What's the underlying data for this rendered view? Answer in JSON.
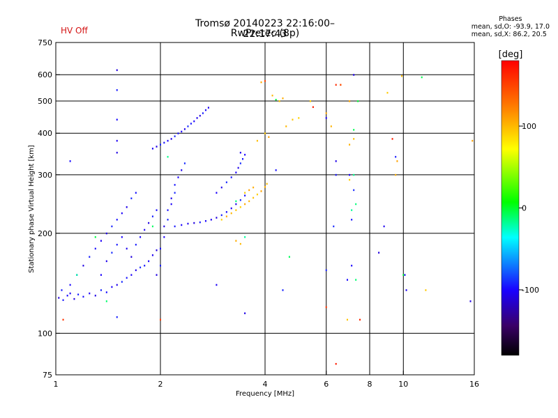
{
  "status": {
    "hv": "HV Off"
  },
  "title": {
    "line1": "Tromsø 20140223 22:16:00–22:17:43",
    "line2": "RwPretec (8p)"
  },
  "stats": {
    "header": "Phases",
    "line1": "mean, sd,O: -93.9, 17.0",
    "line2": "mean, sd,X:  86.2, 20.5"
  },
  "colorbar": {
    "label": "[deg]",
    "ticks": [
      {
        "label": "100",
        "value": 100
      },
      {
        "label": "0",
        "value": 0
      },
      {
        "label": "-100",
        "value": -100
      }
    ],
    "range": [
      -180,
      180
    ]
  },
  "chart_data": {
    "type": "scatter",
    "title": "Tromsø 20140223 22:16:00–22:17:43",
    "subtitle": "RwPretec (8p)",
    "xlabel": "Frequency [MHz]",
    "ylabel": "Stationary phase Virtual Height [km]",
    "xscale": "log",
    "yscale": "log",
    "xlim": [
      1,
      16
    ],
    "ylim": [
      75,
      750
    ],
    "xticks": [
      1,
      2,
      4,
      6,
      8,
      10,
      16
    ],
    "yticks": [
      75,
      100,
      200,
      300,
      400,
      500,
      600,
      750
    ],
    "grid_x": [
      2,
      4,
      6,
      8,
      10
    ],
    "grid_y": [
      100,
      200,
      300,
      400,
      500,
      600
    ],
    "color_variable": "phase [deg]",
    "series": [
      {
        "phase": -100,
        "points": [
          [
            1.02,
            128
          ],
          [
            1.05,
            126
          ],
          [
            1.08,
            130
          ],
          [
            1.1,
            132
          ],
          [
            1.13,
            127
          ],
          [
            1.16,
            131
          ],
          [
            1.2,
            129
          ],
          [
            1.25,
            132
          ],
          [
            1.3,
            130
          ],
          [
            1.35,
            135
          ],
          [
            1.4,
            133
          ],
          [
            1.45,
            138
          ],
          [
            1.5,
            140
          ],
          [
            1.55,
            143
          ],
          [
            1.6,
            147
          ],
          [
            1.65,
            150
          ],
          [
            1.7,
            155
          ],
          [
            1.75,
            158
          ],
          [
            1.8,
            160
          ],
          [
            1.85,
            165
          ],
          [
            1.9,
            172
          ],
          [
            1.95,
            178
          ],
          [
            1.04,
            135
          ],
          [
            1.1,
            140
          ],
          [
            1.15,
            150
          ],
          [
            1.2,
            160
          ],
          [
            1.25,
            170
          ],
          [
            1.3,
            180
          ],
          [
            1.35,
            190
          ],
          [
            1.4,
            200
          ],
          [
            1.45,
            210
          ],
          [
            1.5,
            220
          ],
          [
            1.55,
            230
          ],
          [
            1.6,
            240
          ],
          [
            1.65,
            255
          ],
          [
            1.7,
            265
          ],
          [
            1.35,
            150
          ],
          [
            1.4,
            165
          ],
          [
            1.45,
            175
          ],
          [
            1.5,
            185
          ],
          [
            1.55,
            195
          ],
          [
            1.6,
            180
          ],
          [
            1.65,
            170
          ],
          [
            1.7,
            185
          ],
          [
            1.75,
            195
          ],
          [
            1.8,
            205
          ],
          [
            1.85,
            215
          ],
          [
            1.9,
            225
          ],
          [
            1.95,
            235
          ],
          [
            1.9,
            360
          ],
          [
            1.95,
            365
          ],
          [
            2.0,
            370
          ],
          [
            2.05,
            375
          ],
          [
            2.1,
            380
          ],
          [
            2.15,
            385
          ],
          [
            2.2,
            392
          ],
          [
            2.25,
            400
          ],
          [
            2.3,
            405
          ],
          [
            2.35,
            412
          ],
          [
            2.4,
            420
          ],
          [
            2.45,
            428
          ],
          [
            2.5,
            435
          ],
          [
            2.55,
            445
          ],
          [
            2.6,
            452
          ],
          [
            2.65,
            460
          ],
          [
            2.7,
            470
          ],
          [
            2.75,
            478
          ],
          [
            1.95,
            150
          ],
          [
            2.0,
            160
          ],
          [
            2.0,
            180
          ],
          [
            2.05,
            195
          ],
          [
            2.05,
            210
          ],
          [
            2.1,
            220
          ],
          [
            2.1,
            235
          ],
          [
            2.15,
            245
          ],
          [
            2.15,
            255
          ],
          [
            2.2,
            265
          ],
          [
            2.2,
            280
          ],
          [
            2.25,
            295
          ],
          [
            2.3,
            310
          ],
          [
            2.35,
            325
          ],
          [
            2.2,
            210
          ],
          [
            2.3,
            212
          ],
          [
            2.4,
            214
          ],
          [
            2.5,
            215
          ],
          [
            2.6,
            216
          ],
          [
            2.7,
            218
          ],
          [
            2.8,
            220
          ],
          [
            2.9,
            223
          ],
          [
            3.0,
            227
          ],
          [
            3.1,
            232
          ],
          [
            3.2,
            238
          ],
          [
            3.3,
            245
          ],
          [
            3.4,
            252
          ],
          [
            3.5,
            260
          ],
          [
            2.9,
            265
          ],
          [
            3.0,
            275
          ],
          [
            3.1,
            285
          ],
          [
            3.2,
            295
          ],
          [
            3.3,
            305
          ],
          [
            3.35,
            315
          ],
          [
            3.4,
            325
          ],
          [
            3.45,
            335
          ],
          [
            3.5,
            345
          ],
          [
            3.4,
            350
          ],
          [
            1.5,
            620
          ],
          [
            1.5,
            540
          ],
          [
            1.5,
            440
          ],
          [
            1.5,
            380
          ],
          [
            1.5,
            350
          ],
          [
            1.5,
            112
          ],
          [
            1.1,
            330
          ],
          [
            2.9,
            140
          ],
          [
            3.5,
            115
          ],
          [
            4.5,
            135
          ],
          [
            4.3,
            310
          ],
          [
            6.0,
            445
          ],
          [
            6.4,
            330
          ],
          [
            6.3,
            210
          ],
          [
            6.4,
            300
          ],
          [
            7.0,
            300
          ],
          [
            7.2,
            600
          ],
          [
            7.2,
            270
          ],
          [
            7.1,
            220
          ],
          [
            7.1,
            160
          ],
          [
            8.8,
            210
          ],
          [
            8.5,
            175
          ],
          [
            9.5,
            340
          ],
          [
            10.1,
            150
          ],
          [
            10.2,
            135
          ],
          [
            15.6,
            125
          ],
          [
            6.0,
            155
          ],
          [
            6.9,
            145
          ]
        ]
      },
      {
        "phase": 100,
        "points": [
          [
            3.0,
            220
          ],
          [
            3.1,
            225
          ],
          [
            3.2,
            230
          ],
          [
            3.3,
            235
          ],
          [
            3.4,
            240
          ],
          [
            3.5,
            245
          ],
          [
            3.6,
            250
          ],
          [
            3.7,
            256
          ],
          [
            3.8,
            262
          ],
          [
            3.9,
            268
          ],
          [
            4.0,
            276
          ],
          [
            4.05,
            282
          ],
          [
            3.5,
            265
          ],
          [
            3.6,
            270
          ],
          [
            3.7,
            275
          ],
          [
            3.8,
            380
          ],
          [
            4.0,
            400
          ],
          [
            4.1,
            390
          ],
          [
            4.5,
            510
          ],
          [
            4.6,
            420
          ],
          [
            4.8,
            440
          ],
          [
            5.0,
            445
          ],
          [
            3.9,
            570
          ],
          [
            4.2,
            520
          ],
          [
            4.4,
            500
          ],
          [
            5.4,
            500
          ],
          [
            6.0,
            460
          ],
          [
            6.2,
            420
          ],
          [
            6.6,
            560
          ],
          [
            7.0,
            290
          ],
          [
            7.0,
            500
          ],
          [
            7.0,
            370
          ],
          [
            7.2,
            385
          ],
          [
            9.0,
            530
          ],
          [
            9.6,
            330
          ],
          [
            9.5,
            300
          ],
          [
            9.9,
            595
          ],
          [
            11.6,
            135
          ],
          [
            15.8,
            380
          ],
          [
            3.3,
            190
          ],
          [
            3.4,
            186
          ],
          [
            6.9,
            110
          ]
        ]
      },
      {
        "phase": -10,
        "points": [
          [
            1.15,
            150
          ],
          [
            1.3,
            195
          ],
          [
            1.9,
            210
          ],
          [
            3.3,
            250
          ],
          [
            3.5,
            195
          ],
          [
            4.3,
            505
          ],
          [
            4.7,
            170
          ],
          [
            7.3,
            245
          ],
          [
            7.1,
            235
          ],
          [
            7.4,
            500
          ],
          [
            7.2,
            410
          ],
          [
            7.3,
            145
          ],
          [
            7.2,
            300
          ],
          [
            10.0,
            150
          ],
          [
            11.3,
            590
          ],
          [
            1.4,
            125
          ],
          [
            2.1,
            340
          ]
        ]
      },
      {
        "phase": 160,
        "points": [
          [
            4.0,
            575
          ],
          [
            5.5,
            480
          ],
          [
            6.4,
            560
          ],
          [
            6.0,
            120
          ],
          [
            6.6,
            560
          ],
          [
            9.3,
            385
          ],
          [
            7.5,
            110
          ],
          [
            1.05,
            110
          ],
          [
            2.0,
            110
          ],
          [
            6.4,
            81
          ]
        ]
      }
    ]
  }
}
